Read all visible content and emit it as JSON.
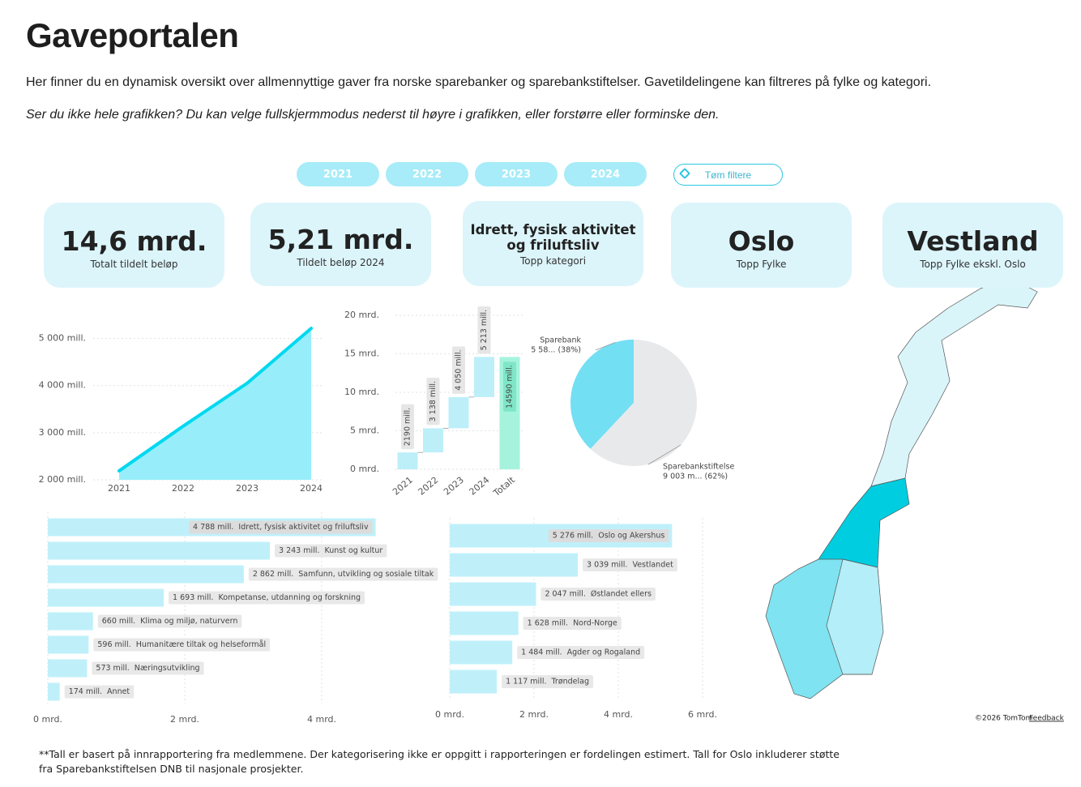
{
  "header": {
    "title": "Gaveportalen",
    "intro": "Her finner du en dynamisk oversikt over allmennyttige gaver fra norske sparebanker og sparebankstiftelser. Gavetildelingene kan filtreres på fylke og kategori.",
    "note": "Ser du ikke hele grafikken? Du kan velge fullskjermmodus nederst til høyre i grafikken, eller forstørre eller forminske den."
  },
  "filters": {
    "years": [
      "2021",
      "2022",
      "2023",
      "2024"
    ],
    "clear": "Tøm filtere"
  },
  "kpis": [
    {
      "value": "14,6 mrd.",
      "label": "Totalt tildelt beløp"
    },
    {
      "value": "5,21 mrd.",
      "label": "Tildelt beløp 2024"
    },
    {
      "value": "Idrett, fysisk aktivitet og friluftsliv",
      "label": "Topp kategori"
    },
    {
      "value": "Oslo",
      "label": "Topp Fylke"
    },
    {
      "value": "Vestland",
      "label": "Topp Fylke ekskl. Oslo"
    }
  ],
  "chart_data": [
    {
      "type": "area",
      "categories": [
        "2021",
        "2022",
        "2023",
        "2024"
      ],
      "values": [
        2190,
        3138,
        4050,
        5213
      ],
      "color": "#00d8f0",
      "area_color": "#97eefa",
      "ylim": [
        2000,
        5250
      ],
      "yticks": [
        {
          "value": 2000,
          "label": "2 000 mill."
        },
        {
          "value": 3000,
          "label": "3 000 mill."
        },
        {
          "value": 4000,
          "label": "4 000 mill."
        },
        {
          "value": 5000,
          "label": "5 000 mill."
        }
      ],
      "grid": true
    },
    {
      "type": "waterfall",
      "categories": [
        "2021",
        "2022",
        "2023",
        "2024",
        "Totalt"
      ],
      "values": [
        2.19,
        3.138,
        4.05,
        5.213,
        14.59
      ],
      "value_labels": [
        "2190 mill.",
        "3 138 mill.",
        "4 050 mill.",
        "5 213 mill.",
        "14590 mill."
      ],
      "color": "#bdeff9",
      "total_color": "#a6f3dd",
      "ylim": [
        0,
        20
      ],
      "yticks": [
        {
          "value": 0,
          "label": "0 mrd."
        },
        {
          "value": 5,
          "label": "5 mrd."
        },
        {
          "value": 10,
          "label": "10 mrd."
        },
        {
          "value": 15,
          "label": "15 mrd."
        },
        {
          "value": 20,
          "label": "20 mrd."
        }
      ],
      "grid": true
    },
    {
      "type": "pie",
      "categories": [
        "Sparebank",
        "Sparebankstiftelse"
      ],
      "values": [
        38,
        62
      ],
      "value_labels": [
        "5 58... (38%)",
        "9 003 m... (62%)"
      ],
      "colors": [
        "#72dff3",
        "#e8e9eb"
      ]
    },
    {
      "type": "hbar",
      "categories": [
        "Idrett, fysisk aktivitet og friluftsliv",
        "Kunst og kultur",
        "Samfunn, utvikling og sosiale tiltak",
        "Kompetanse, utdanning og forskning",
        "Klima og miljø, naturvern",
        "Humanitære tiltak og helseformål",
        "Næringsutvikling",
        "Annet"
      ],
      "values": [
        4.788,
        3.243,
        2.862,
        1.693,
        0.66,
        0.596,
        0.573,
        0.174
      ],
      "value_labels": [
        "4 788 mill.",
        "3 243 mill.",
        "2 862 mill.",
        "1 693 mill.",
        "660 mill.",
        "596 mill.",
        "573 mill.",
        "174 mill."
      ],
      "color": "#bff0fa",
      "xlim": [
        0,
        5
      ],
      "xticks": [
        {
          "value": 0,
          "label": "0 mrd."
        },
        {
          "value": 2,
          "label": "2 mrd."
        },
        {
          "value": 4,
          "label": "4 mrd."
        }
      ],
      "grid": true
    },
    {
      "type": "hbar",
      "categories": [
        "Oslo og Akershus",
        "Vestlandet",
        "Østlandet ellers",
        "Nord-Norge",
        "Agder og Rogaland",
        "Trøndelag"
      ],
      "values": [
        5.276,
        3.039,
        2.047,
        1.628,
        1.484,
        1.117
      ],
      "value_labels": [
        "5 276 mill.",
        "3 039 mill.",
        "2 047 mill.",
        "1 628 mill.",
        "1 484 mill.",
        "1 117 mill."
      ],
      "color": "#bff0fa",
      "xlim": [
        0,
        6
      ],
      "xticks": [
        {
          "value": 0,
          "label": "0 mrd."
        },
        {
          "value": 2,
          "label": "2 mrd."
        },
        {
          "value": 4,
          "label": "4 mrd."
        },
        {
          "value": 6,
          "label": "6 mrd."
        }
      ],
      "grid": true
    }
  ],
  "map": {
    "credit": "©2026 TomTom",
    "feedback": "Feedback"
  },
  "footnote": "**Tall er basert på innrapportering fra medlemmene. Der kategorisering ikke er oppgitt i rapporteringen er fordelingen estimert. Tall for Oslo inkluderer støtte fra Sparebankstiftelsen DNB til nasjonale prosjekter."
}
